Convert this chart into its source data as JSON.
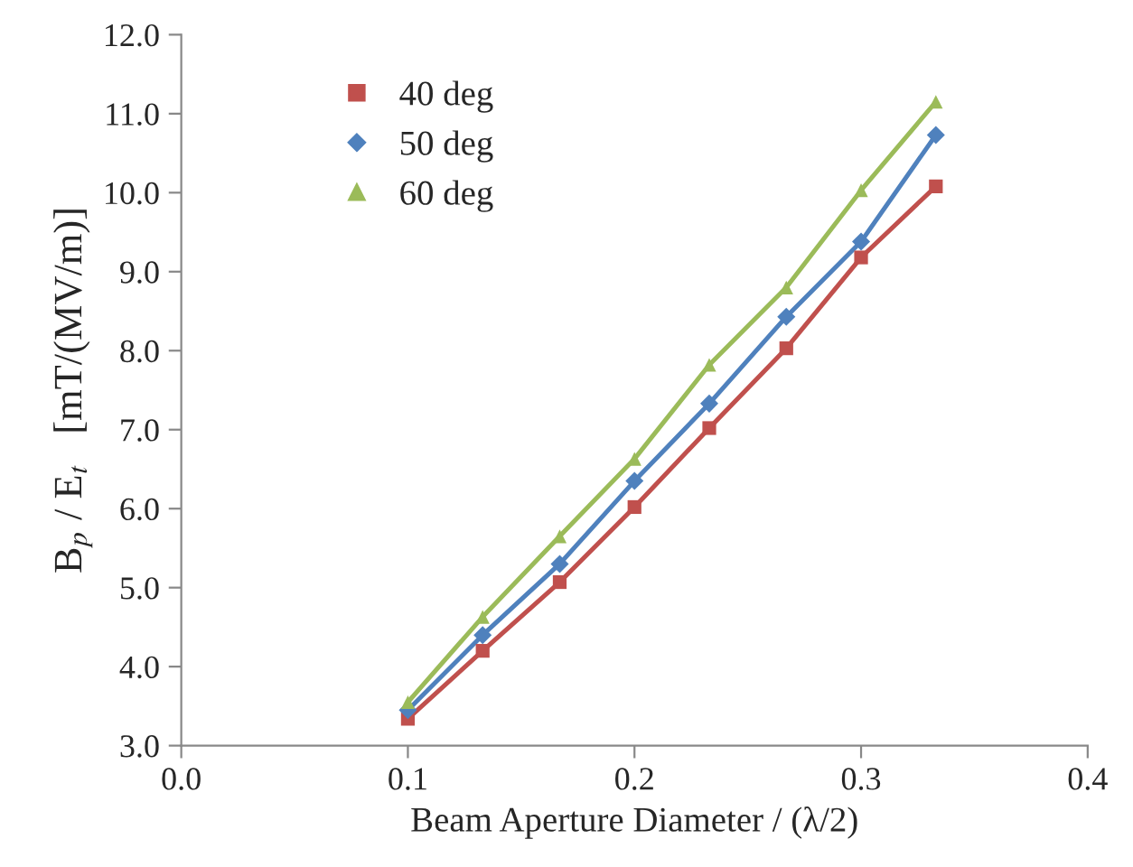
{
  "chart_data": {
    "type": "line",
    "xlabel": "Beam Aperture Diameter / (λ/2)",
    "ylabel": "B$_{p}$ / E$_{t}$   [mT/(MV/m)]",
    "x": [
      0.1,
      0.133,
      0.167,
      0.2,
      0.233,
      0.267,
      0.3,
      0.333
    ],
    "series": [
      {
        "name": "40 deg",
        "color": "#c0504d",
        "marker": "square",
        "values": [
          3.34,
          4.2,
          5.07,
          6.02,
          7.02,
          8.03,
          9.18,
          10.08
        ]
      },
      {
        "name": "50 deg",
        "color": "#4f81bd",
        "marker": "diamond",
        "values": [
          3.45,
          4.4,
          5.3,
          6.35,
          7.33,
          8.43,
          9.38,
          10.73
        ]
      },
      {
        "name": "60 deg",
        "color": "#9bbb59",
        "marker": "triangle",
        "values": [
          3.55,
          4.63,
          5.65,
          6.63,
          7.82,
          8.8,
          10.03,
          11.15
        ]
      }
    ],
    "xlim": [
      0.0,
      0.4
    ],
    "xticks": [
      {
        "value": 0.0,
        "label": "0.0"
      },
      0.1,
      0.2,
      0.3,
      0.4
    ],
    "ylim": [
      3.0,
      12.0
    ],
    "yticks": [
      {
        "value": 3.0,
        "label": "3.0"
      },
      {
        "value": 4.0,
        "label": "4.0"
      },
      {
        "value": 5.0,
        "label": "5.0"
      },
      {
        "value": 6.0,
        "label": "6.0"
      },
      {
        "value": 7.0,
        "label": "7.0"
      },
      {
        "value": 8.0,
        "label": "8.0"
      },
      {
        "value": 9.0,
        "label": "9.0"
      },
      {
        "value": 10.0,
        "label": "10.0"
      },
      {
        "value": 11.0,
        "label": "11.0"
      },
      {
        "value": 12.0,
        "label": "12.0"
      }
    ],
    "grid": false,
    "legend": "top left",
    "line_style": "solid"
  }
}
